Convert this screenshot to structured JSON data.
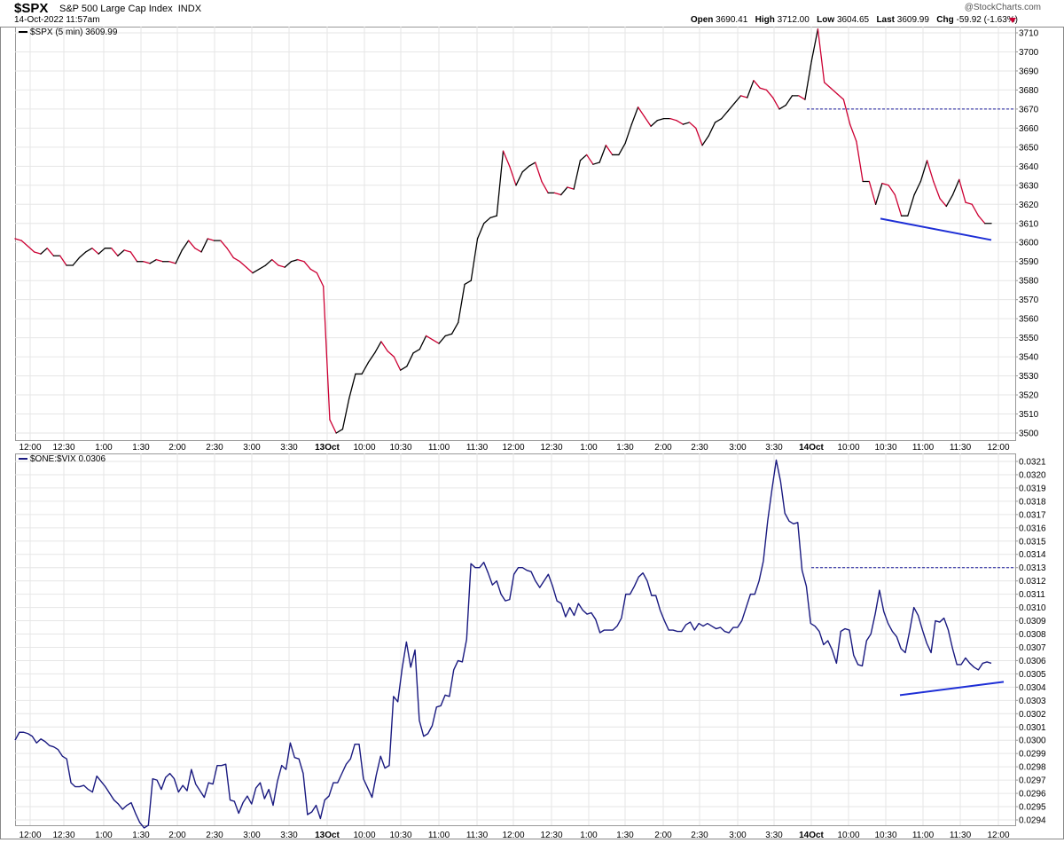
{
  "header": {
    "symbol": "$SPX",
    "name": "S&P 500 Large Cap Index",
    "exchange": "INDX",
    "date_time": "14-Oct-2022 11:57am",
    "watermark": "@StockCharts.com",
    "open_label": "Open",
    "open": "3690.41",
    "high_label": "High",
    "high": "3712.00",
    "low_label": "Low",
    "low": "3604.65",
    "last_label": "Last",
    "last": "3609.99",
    "chg_label": "Chg",
    "chg": "-59.92 (-1.63%)",
    "chg_direction": "down"
  },
  "x_axis_labels": [
    "12:00",
    "12:30",
    "1:00",
    "1:30",
    "2:00",
    "2:30",
    "3:00",
    "3:30",
    "13Oct",
    "10:00",
    "10:30",
    "11:00",
    "11:30",
    "12:00",
    "12:30",
    "1:00",
    "1:30",
    "2:00",
    "2:30",
    "3:00",
    "3:30",
    "14Oct",
    "10:00",
    "10:30",
    "11:00",
    "11:30",
    "12:00"
  ],
  "bold_x_labels": [
    "13Oct",
    "14Oct"
  ],
  "colors": {
    "up": "#000000",
    "down": "#cc0033",
    "ratio_line": "#1a1a80",
    "trend_line": "#1e2fd6",
    "reference_line": "#1a1a9a",
    "grid": "#e6e6e6"
  },
  "chart_data": [
    {
      "type": "line",
      "legend": "$SPX (5 min) 3609.99",
      "color_mode": "up-down (black up, red down)",
      "ylim": [
        3497,
        3713
      ],
      "yticks": [
        3500,
        3510,
        3520,
        3530,
        3540,
        3550,
        3560,
        3570,
        3580,
        3590,
        3600,
        3610,
        3620,
        3630,
        3640,
        3650,
        3660,
        3670,
        3680,
        3690,
        3700,
        3710
      ],
      "grid": true,
      "values": [
        3602,
        3601,
        3598,
        3595,
        3594,
        3597,
        3593,
        3593,
        3588,
        3588,
        3592,
        3595,
        3597,
        3594,
        3597,
        3597,
        3593,
        3596,
        3595,
        3590,
        3590,
        3589,
        3591,
        3590,
        3590,
        3589,
        3596,
        3601,
        3597,
        3595,
        3602,
        3601,
        3601,
        3597,
        3592,
        3590,
        3587,
        3584,
        3586,
        3588,
        3591,
        3588,
        3587,
        3590,
        3591,
        3590,
        3586,
        3584,
        3577,
        3507,
        3500,
        3502,
        3518,
        3531,
        3531,
        3537,
        3542,
        3548,
        3543,
        3540,
        3533,
        3535,
        3542,
        3544,
        3551,
        3549,
        3547,
        3551,
        3552,
        3558,
        3578,
        3580,
        3602,
        3610,
        3613,
        3614,
        3648,
        3640,
        3630,
        3637,
        3640,
        3642,
        3632,
        3626,
        3626,
        3625,
        3629,
        3628,
        3643,
        3646,
        3641,
        3642,
        3651,
        3646,
        3646,
        3652,
        3662,
        3671,
        3666,
        3661,
        3664,
        3665,
        3665,
        3664,
        3662,
        3663,
        3660,
        3651,
        3656,
        3663,
        3665,
        3669,
        3673,
        3677,
        3676,
        3685,
        3681,
        3680,
        3676,
        3670,
        3672,
        3677,
        3677,
        3675,
        3695,
        3712,
        3684,
        3681,
        3678,
        3675,
        3662,
        3653,
        3632,
        3632,
        3620,
        3631,
        3630,
        3625,
        3614,
        3614,
        3625,
        3632,
        3643,
        3632,
        3623,
        3619,
        3625,
        3633,
        3621,
        3620,
        3614,
        3610,
        3610
      ],
      "reference_level": 3670,
      "trendline": [
        3612.5,
        3601.3
      ]
    },
    {
      "type": "line",
      "legend": "$ONE:$VIX 0.0306",
      "ylim": [
        0.02936,
        0.03214
      ],
      "yticks": [
        "0.0294",
        "0.0295",
        "0.0296",
        "0.0297",
        "0.0298",
        "0.0299",
        "0.0300",
        "0.0301",
        "0.0302",
        "0.0303",
        "0.0304",
        "0.0305",
        "0.0306",
        "0.0307",
        "0.0308",
        "0.0309",
        "0.0310",
        "0.0311",
        "0.0312",
        "0.0313",
        "0.0314",
        "0.0315",
        "0.0316",
        "0.0317",
        "0.0318",
        "0.0319",
        "0.0320",
        "0.0321"
      ],
      "grid": true,
      "values": [
        0.03,
        0.03006,
        0.03006,
        0.03005,
        0.03003,
        0.02998,
        0.03001,
        0.02999,
        0.02996,
        0.02995,
        0.02993,
        0.02988,
        0.02986,
        0.02968,
        0.02965,
        0.02965,
        0.02966,
        0.02963,
        0.02961,
        0.02973,
        0.02969,
        0.02965,
        0.0296,
        0.02955,
        0.02952,
        0.02948,
        0.02951,
        0.02953,
        0.02945,
        0.02938,
        0.02934,
        0.02936,
        0.02971,
        0.0297,
        0.02963,
        0.02972,
        0.02975,
        0.02971,
        0.02961,
        0.02966,
        0.02962,
        0.02978,
        0.02967,
        0.02962,
        0.02957,
        0.02968,
        0.02967,
        0.02981,
        0.02981,
        0.02982,
        0.02955,
        0.02954,
        0.02945,
        0.02953,
        0.02958,
        0.02952,
        0.02964,
        0.02968,
        0.02956,
        0.02963,
        0.02951,
        0.02969,
        0.02981,
        0.02978,
        0.02998,
        0.02987,
        0.02986,
        0.02975,
        0.02944,
        0.02946,
        0.02951,
        0.02941,
        0.02955,
        0.02958,
        0.02968,
        0.02968,
        0.02975,
        0.02982,
        0.02986,
        0.02997,
        0.02997,
        0.02971,
        0.02964,
        0.02957,
        0.02974,
        0.02988,
        0.02979,
        0.02981,
        0.03033,
        0.03029,
        0.03054,
        0.03074,
        0.03055,
        0.03068,
        0.03015,
        0.03003,
        0.03005,
        0.03011,
        0.03025,
        0.03026,
        0.03034,
        0.03033,
        0.03053,
        0.0306,
        0.03059,
        0.03076,
        0.03133,
        0.0313,
        0.0313,
        0.03134,
        0.03126,
        0.03117,
        0.0312,
        0.0311,
        0.03105,
        0.03106,
        0.03125,
        0.0313,
        0.0313,
        0.03128,
        0.03127,
        0.0312,
        0.03115,
        0.0312,
        0.03125,
        0.03116,
        0.03105,
        0.03103,
        0.03093,
        0.031,
        0.03094,
        0.03103,
        0.03098,
        0.03095,
        0.03096,
        0.03091,
        0.03081,
        0.03083,
        0.03083,
        0.03083,
        0.03086,
        0.03092,
        0.0311,
        0.0311,
        0.03116,
        0.03123,
        0.03126,
        0.0312,
        0.03109,
        0.03109,
        0.03098,
        0.0309,
        0.03083,
        0.03083,
        0.03082,
        0.03082,
        0.03087,
        0.03089,
        0.03083,
        0.03088,
        0.03086,
        0.03088,
        0.03086,
        0.03084,
        0.03085,
        0.03082,
        0.03081,
        0.03085,
        0.03085,
        0.0309,
        0.031,
        0.0311,
        0.0311,
        0.0312,
        0.03135,
        0.03165,
        0.03189,
        0.03211,
        0.03195,
        0.03171,
        0.03165,
        0.03163,
        0.03164,
        0.03128,
        0.03116,
        0.03088,
        0.03086,
        0.03082,
        0.03072,
        0.03075,
        0.03068,
        0.03058,
        0.03082,
        0.03084,
        0.03083,
        0.03064,
        0.03057,
        0.03056,
        0.03075,
        0.0308,
        0.03095,
        0.03113,
        0.03097,
        0.03088,
        0.03082,
        0.03078,
        0.03069,
        0.03066,
        0.03082,
        0.031,
        0.03094,
        0.03083,
        0.03073,
        0.03066,
        0.0309,
        0.03089,
        0.03092,
        0.03083,
        0.03069,
        0.03057,
        0.03057,
        0.03062,
        0.03058,
        0.03055,
        0.03053,
        0.03058,
        0.03059,
        0.03058
      ],
      "reference_level": 0.0313,
      "trendline": [
        0.03034,
        0.03044
      ]
    }
  ]
}
